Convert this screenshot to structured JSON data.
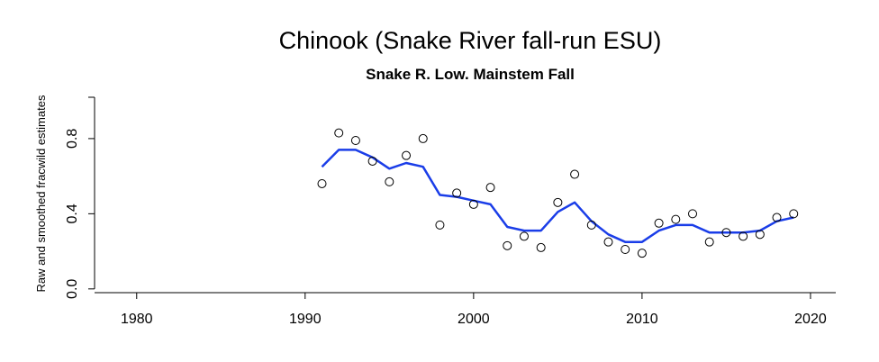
{
  "chart_data": {
    "type": "line",
    "title": "Chinook (Snake River fall-run ESU)",
    "subtitle": "Snake R. Low. Mainstem Fall",
    "xlabel": "",
    "ylabel": "Raw and smoothed fracwild estimates",
    "xlim": [
      1977.5,
      2021.5
    ],
    "ylim": [
      -0.02,
      1.02
    ],
    "x_ticks": [
      1980,
      1990,
      2000,
      2010,
      2020
    ],
    "y_ticks": [
      0.0,
      0.4,
      0.8
    ],
    "y_tick_labels": [
      "0.0",
      "0.4",
      "0.8"
    ],
    "series": [
      {
        "kind": "points",
        "marker": "open-circle",
        "color": "#000000",
        "x": [
          1991,
          1992,
          1993,
          1994,
          1995,
          1996,
          1997,
          1998,
          1999,
          2000,
          2001,
          2002,
          2003,
          2004,
          2005,
          2006,
          2007,
          2008,
          2009,
          2010,
          2011,
          2012,
          2013,
          2014,
          2015,
          2016,
          2017,
          2018,
          2019
        ],
        "y": [
          0.56,
          0.83,
          0.79,
          0.68,
          0.57,
          0.71,
          0.8,
          0.34,
          0.51,
          0.45,
          0.54,
          0.23,
          0.28,
          0.22,
          0.46,
          0.61,
          0.34,
          0.25,
          0.21,
          0.19,
          0.35,
          0.37,
          0.4,
          0.25,
          0.3,
          0.28,
          0.29,
          0.38,
          0.4
        ]
      },
      {
        "kind": "line",
        "color": "#1a3de8",
        "x": [
          1991,
          1992,
          1993,
          1994,
          1995,
          1996,
          1997,
          1998,
          1999,
          2000,
          2001,
          2002,
          2003,
          2004,
          2005,
          2006,
          2007,
          2008,
          2009,
          2010,
          2011,
          2012,
          2013,
          2014,
          2015,
          2016,
          2017,
          2018,
          2019
        ],
        "y": [
          0.65,
          0.74,
          0.74,
          0.7,
          0.64,
          0.67,
          0.65,
          0.5,
          0.49,
          0.47,
          0.45,
          0.33,
          0.31,
          0.31,
          0.41,
          0.46,
          0.36,
          0.29,
          0.25,
          0.25,
          0.31,
          0.34,
          0.34,
          0.3,
          0.3,
          0.3,
          0.31,
          0.36,
          0.38
        ]
      }
    ],
    "grid": false,
    "legend": "none"
  }
}
